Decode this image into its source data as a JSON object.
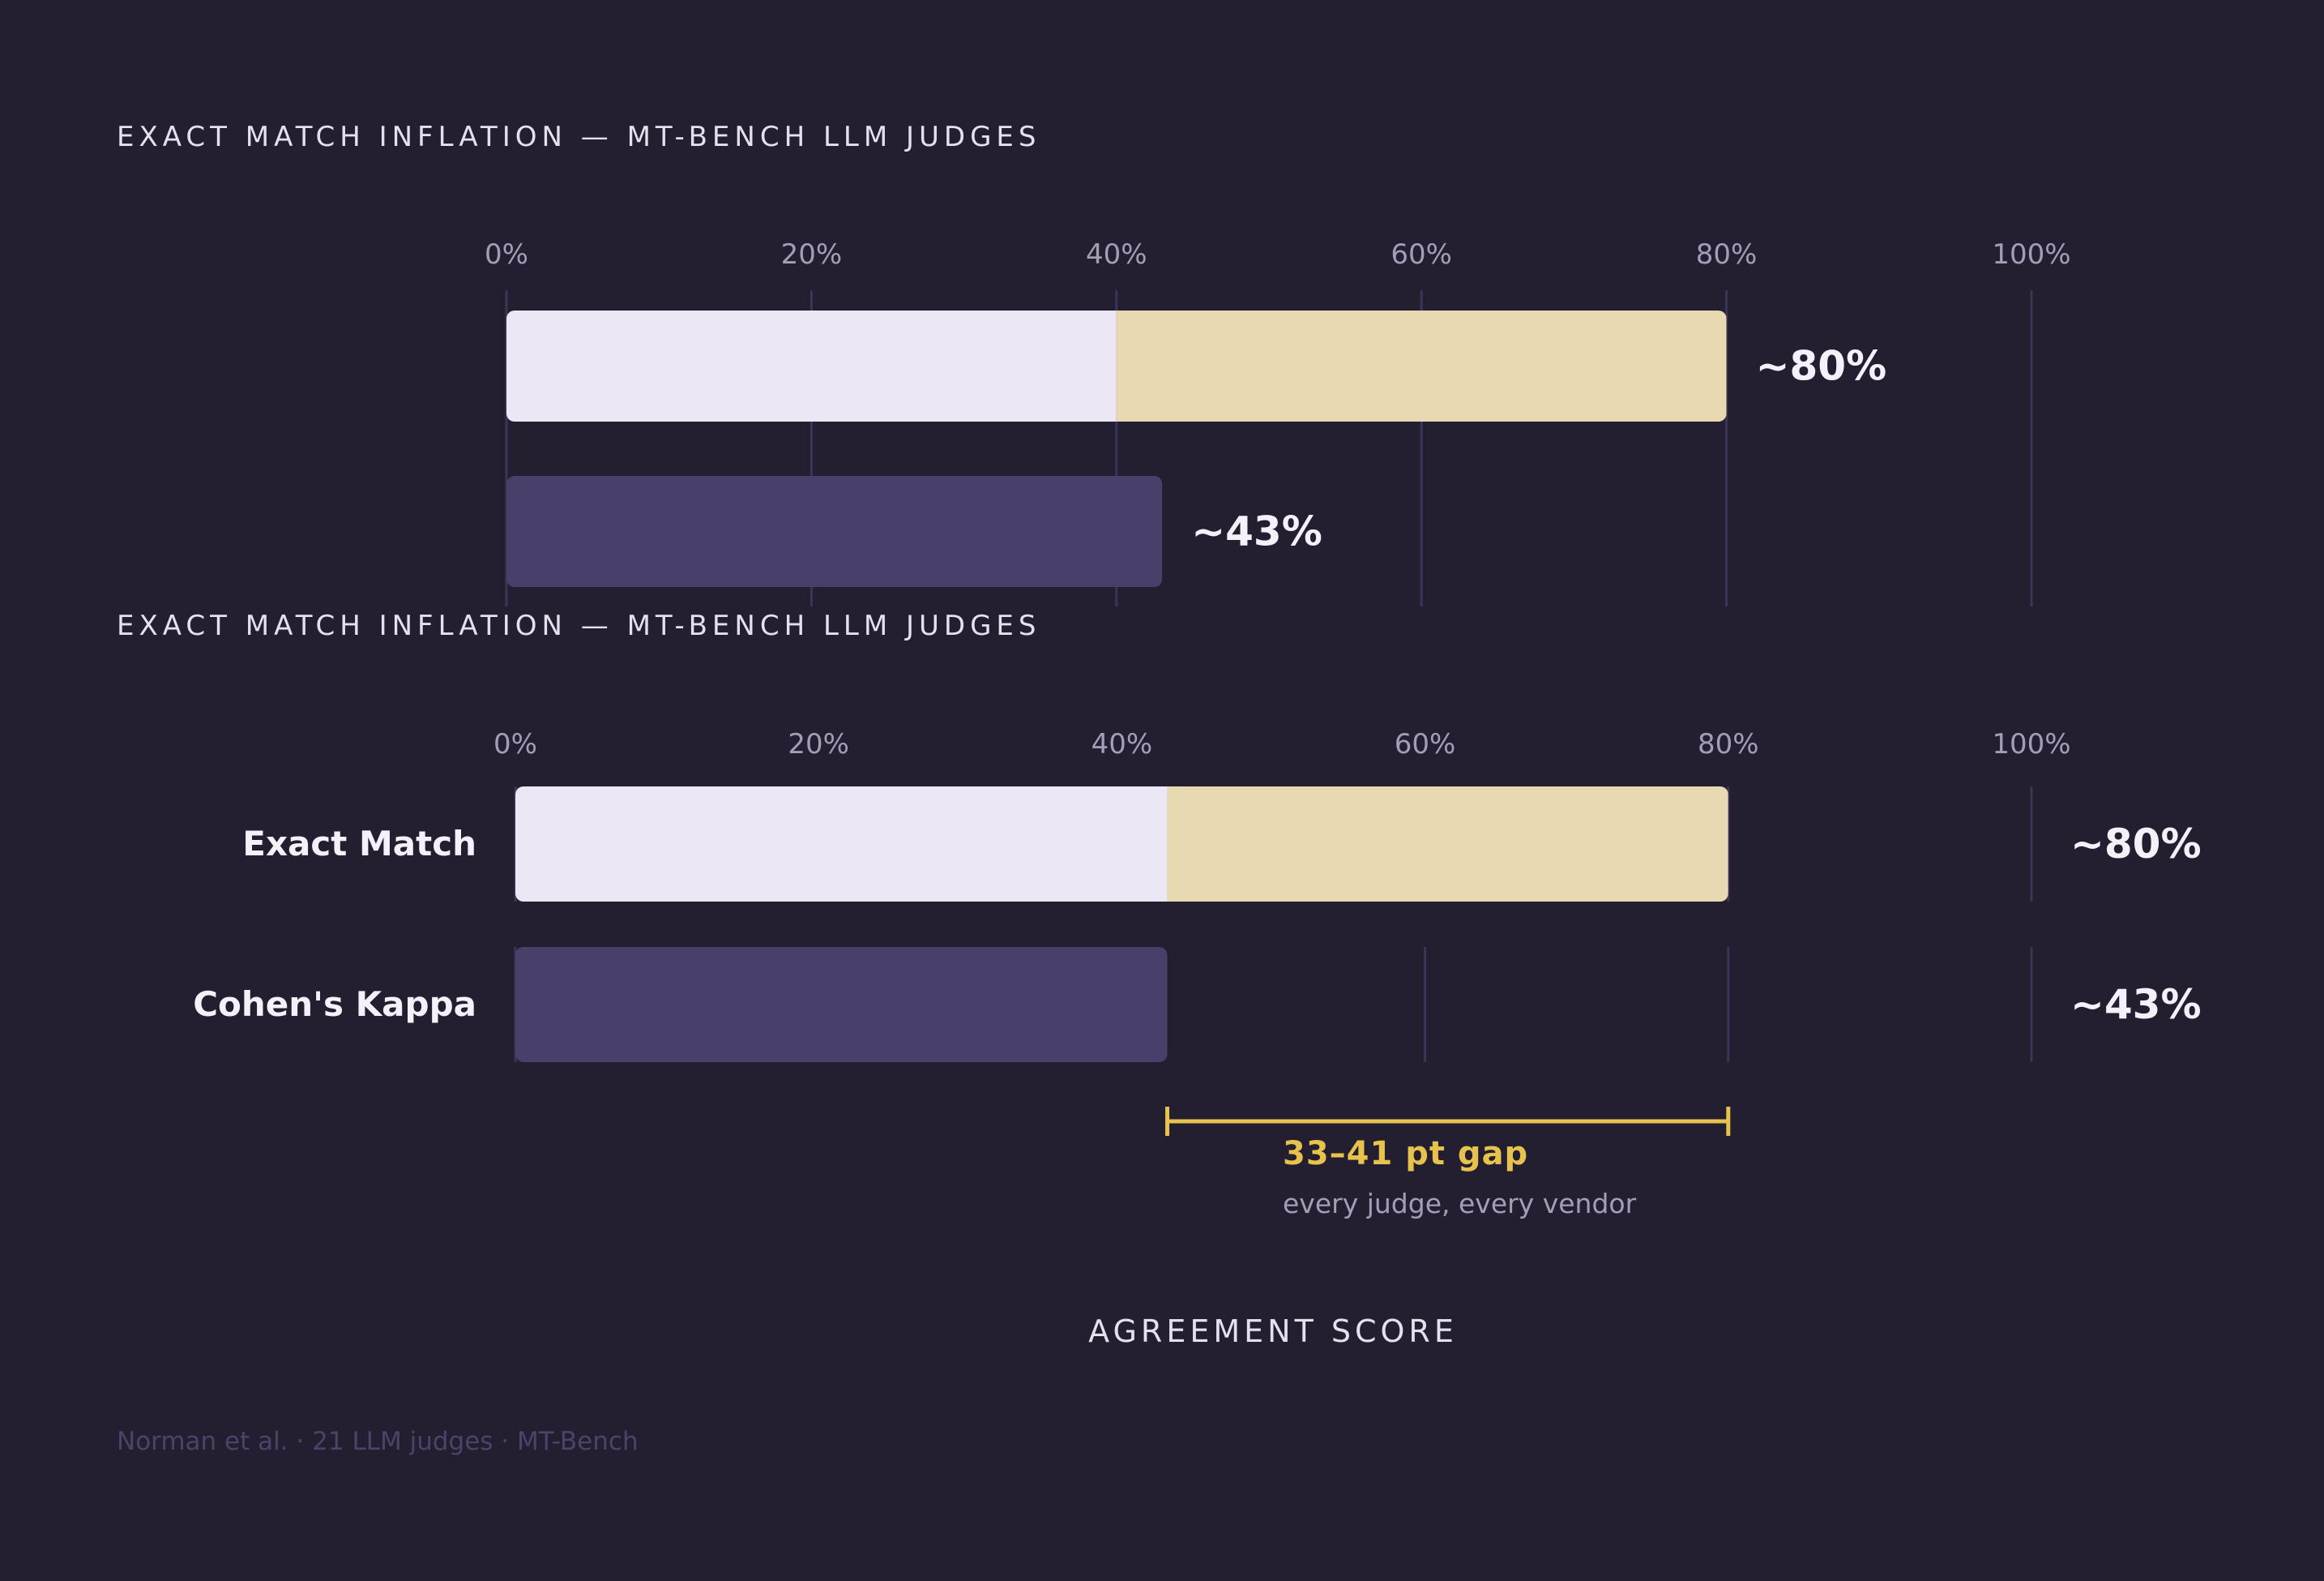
{
  "colors": {
    "background": "#241e31",
    "exact_match_base": "#ebe7f5",
    "inflation": "#e9d9b0",
    "kappa": "#4a3f6a",
    "gridline": "#3d3458",
    "gap_accent": "#e7c24d",
    "tick_text": "#a59db8",
    "title_text": "#e4e0ee",
    "value_text": "#f4f1fa",
    "footer_text": "#4c4468"
  },
  "footer": "Norman et al. · 21 LLM judges · MT-Bench",
  "chart_data": [
    {
      "type": "bar",
      "orientation": "horizontal",
      "stacked": true,
      "title": "EXACT MATCH INFLATION — MT-BENCH LLM JUDGES",
      "xlim": [
        0,
        100
      ],
      "x_ticks": [
        "0%",
        "20%",
        "40%",
        "60%",
        "80%",
        "100%"
      ],
      "grid": true,
      "categories": [
        "",
        ""
      ],
      "series": [
        {
          "values": [
            40,
            43
          ]
        },
        {
          "values": [
            40,
            0
          ]
        }
      ],
      "data_labels": [
        "~80%",
        "~43%"
      ]
    },
    {
      "type": "bar",
      "orientation": "horizontal",
      "stacked": true,
      "title": "EXACT MATCH INFLATION — MT-BENCH LLM JUDGES",
      "xlabel": "AGREEMENT SCORE",
      "xlim": [
        0,
        100
      ],
      "x_ticks": [
        "0%",
        "20%",
        "40%",
        "60%",
        "80%",
        "100%"
      ],
      "grid": true,
      "categories": [
        "Exact Match",
        "Cohen's Kappa"
      ],
      "series": [
        {
          "values": [
            43,
            43
          ]
        },
        {
          "values": [
            37,
            0
          ]
        }
      ],
      "data_labels": [
        "~80%",
        "~43%"
      ],
      "annotation": {
        "range": [
          43,
          80
        ],
        "label": "33–41 pt gap",
        "sublabel": "every judge, every vendor"
      }
    }
  ]
}
